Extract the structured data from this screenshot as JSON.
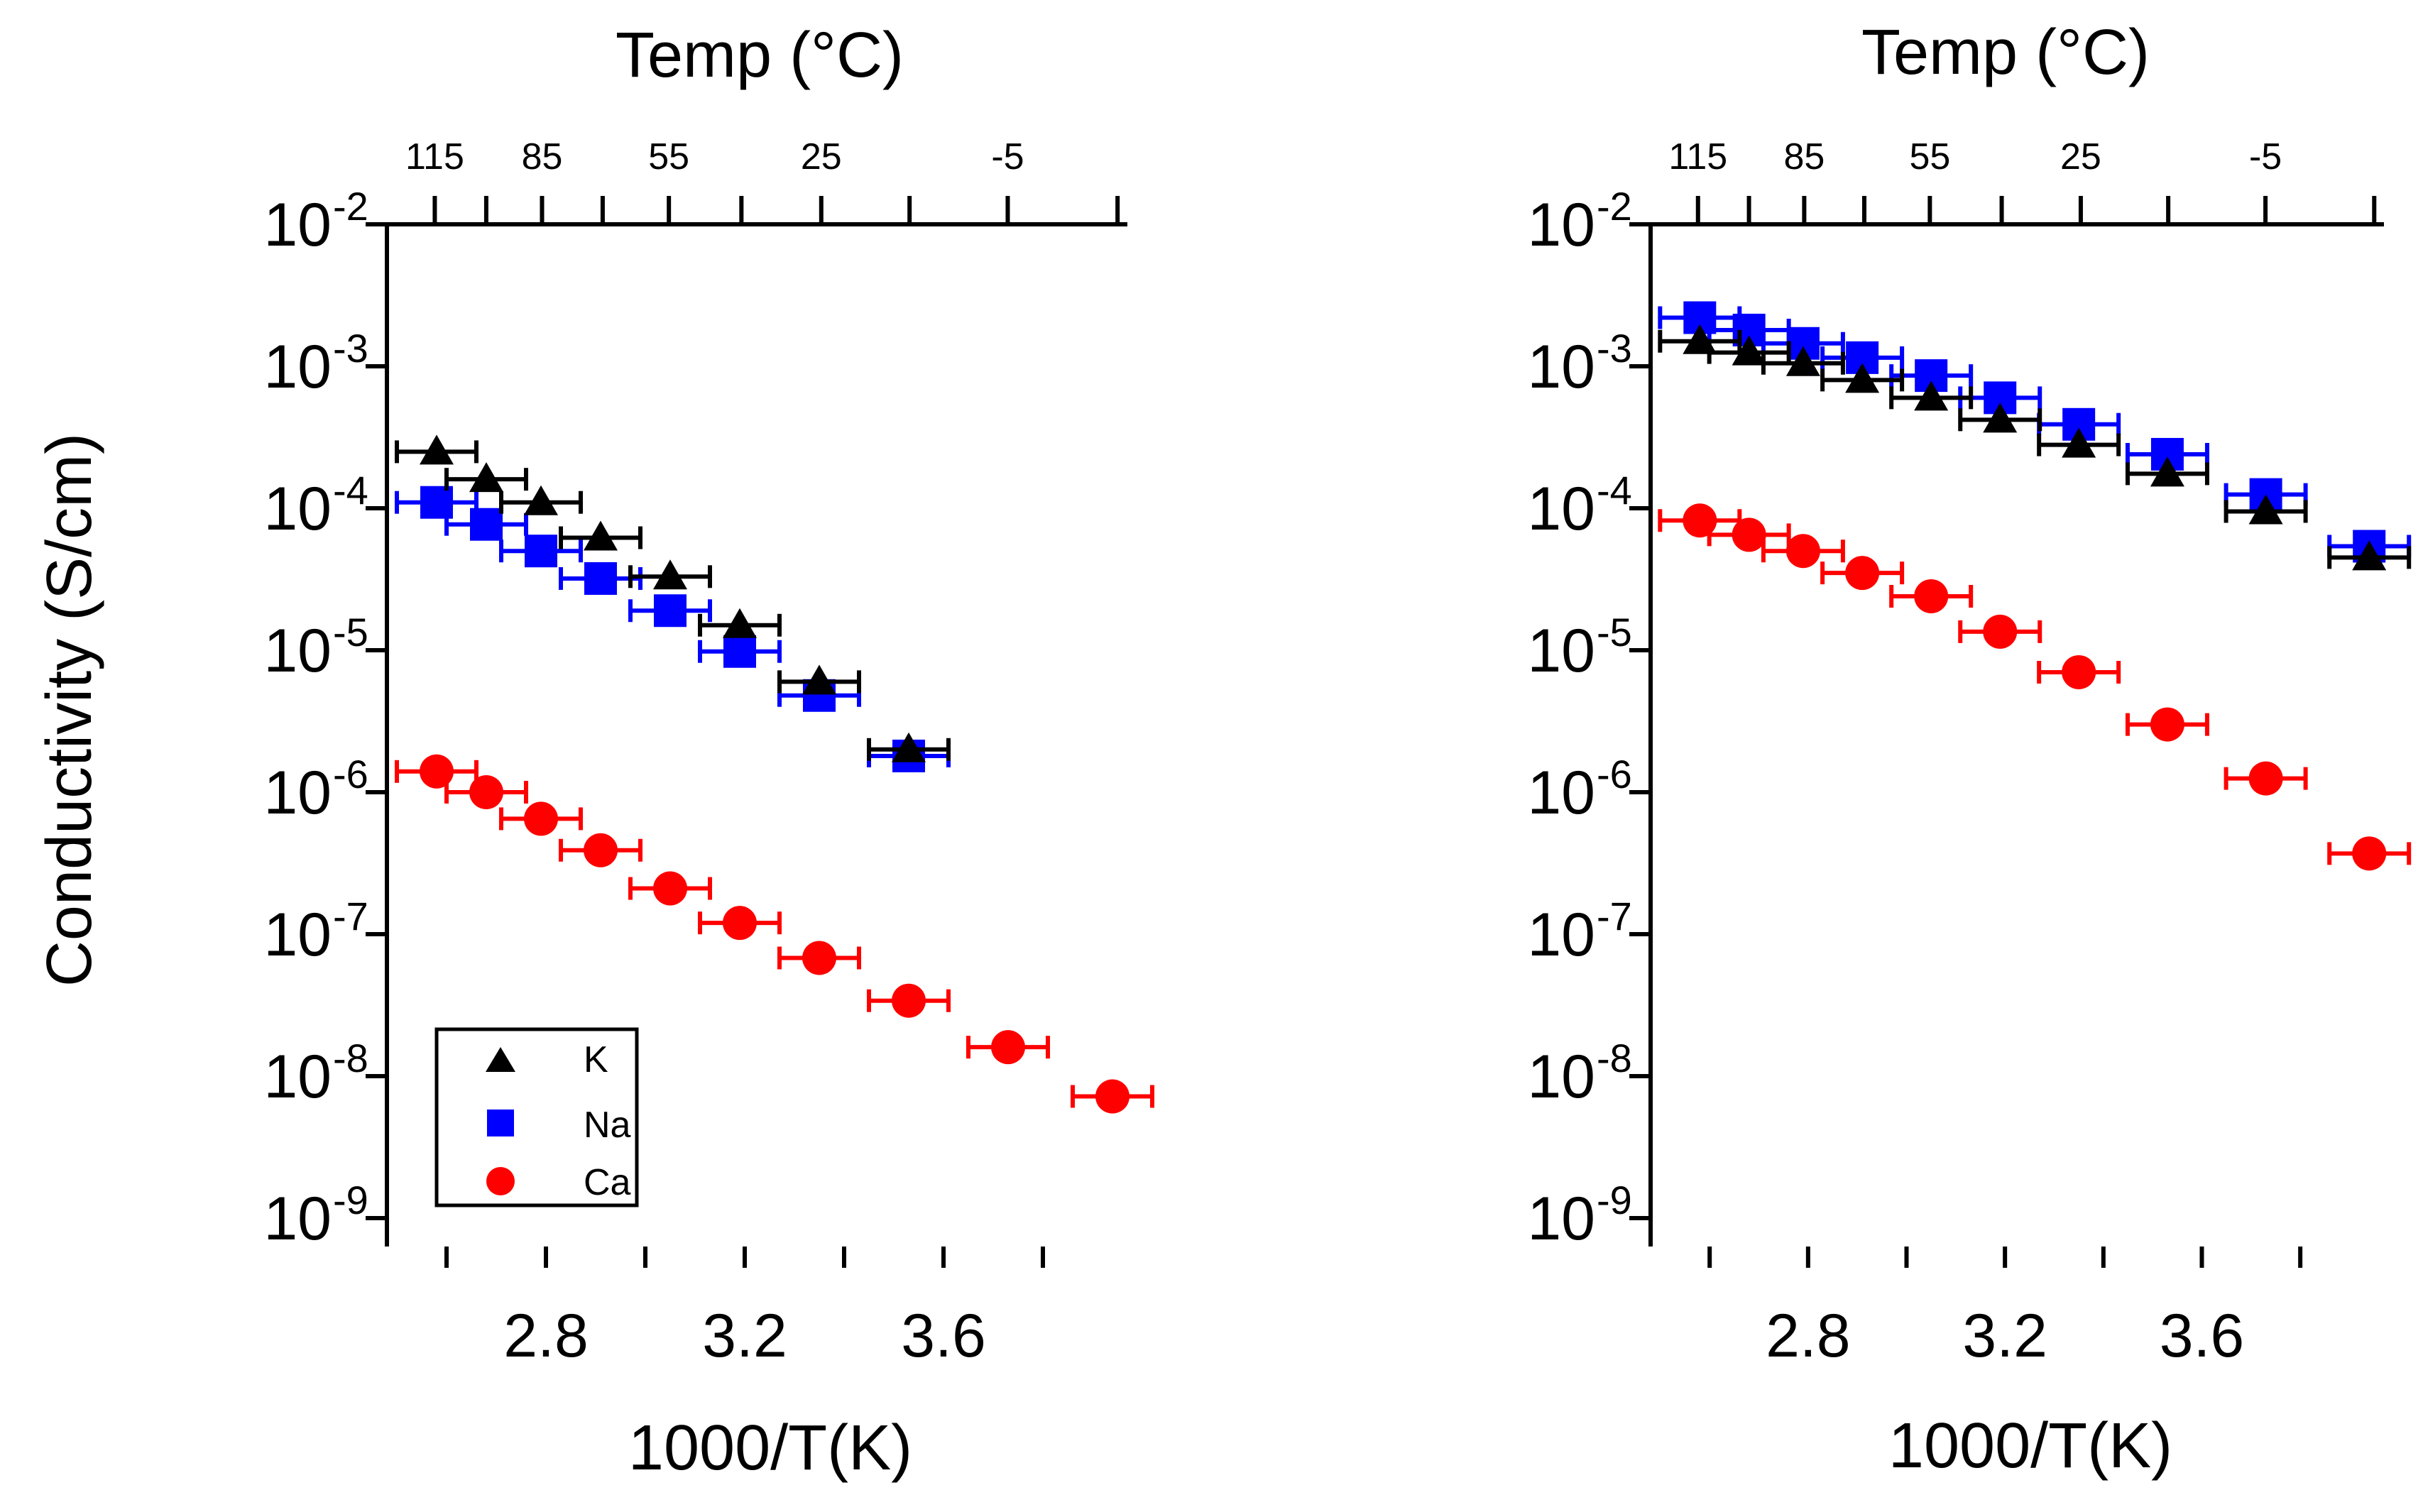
{
  "shared": {
    "y_axis_title": "Conductivity (S/cm)",
    "x_axis_title": "1000/T(K)",
    "top_axis_title": "Temp (°C)",
    "y_tick_base": "10",
    "legend": [
      {
        "label": "K",
        "color": "#000000",
        "marker": "triangle"
      },
      {
        "label": "Na",
        "color": "#0000ff",
        "marker": "square"
      },
      {
        "label": "Ca",
        "color": "#ff0000",
        "marker": "circle"
      }
    ]
  },
  "chart_data": [
    {
      "type": "scatter",
      "panel": "left",
      "xlabel": "1000/T(K)",
      "ylabel": "Conductivity (S/cm)",
      "top_xlabel": "Temp (°C)",
      "xlim": [
        2.48,
        3.97
      ],
      "ylim_log10": [
        -9.2,
        -2
      ],
      "yscale": "log",
      "x_ticks": [
        2.8,
        3.2,
        3.6
      ],
      "x_tick_labels": [
        "2.8",
        "3.2",
        "3.6"
      ],
      "y_tick_exponents": [
        -2,
        -3,
        -4,
        -5,
        -6,
        -7,
        -8,
        -9
      ],
      "top_ticks_celsius": [
        115,
        100,
        85,
        70,
        55,
        40,
        25,
        10,
        -5,
        -20
      ],
      "top_tick_labels": [
        "115",
        "85",
        "55",
        "25",
        "-5"
      ],
      "legend_position": "bottom-left",
      "series": [
        {
          "name": "K",
          "color": "#000000",
          "marker": "triangle",
          "x": [
            2.58,
            2.68,
            2.79,
            2.91,
            3.05,
            3.19,
            3.35,
            3.53
          ],
          "y": [
            0.00025,
            0.00016,
            0.00011,
            6.2e-05,
            3.3e-05,
            1.5e-05,
            6e-06,
            2e-06
          ]
        },
        {
          "name": "Na",
          "color": "#0000ff",
          "marker": "square",
          "x": [
            2.58,
            2.68,
            2.79,
            2.91,
            3.05,
            3.19,
            3.35,
            3.53
          ],
          "y": [
            0.00011,
            7.7e-05,
            5e-05,
            3.2e-05,
            1.9e-05,
            9.8e-06,
            4.8e-06,
            1.8e-06
          ]
        },
        {
          "name": "Ca",
          "color": "#ff0000",
          "marker": "circle",
          "x": [
            2.58,
            2.68,
            2.79,
            2.91,
            3.05,
            3.19,
            3.35,
            3.53,
            3.73,
            3.94
          ],
          "y": [
            1.4e-06,
            1e-06,
            6.5e-07,
            3.9e-07,
            2.1e-07,
            1.2e-07,
            6.8e-08,
            3.4e-08,
            1.6e-08,
            7.2e-09
          ]
        }
      ]
    },
    {
      "type": "scatter",
      "panel": "right",
      "xlabel": "1000/T(K)",
      "ylabel": "",
      "top_xlabel": "Temp (°C)",
      "xlim": [
        2.48,
        3.97
      ],
      "ylim_log10": [
        -9.2,
        -2
      ],
      "yscale": "log",
      "x_ticks": [
        2.8,
        3.2,
        3.6
      ],
      "x_tick_labels": [
        "2.8",
        "3.2",
        "3.6"
      ],
      "y_tick_exponents": [
        -2,
        -3,
        -4,
        -5,
        -6,
        -7,
        -8,
        -9
      ],
      "top_ticks_celsius": [
        115,
        100,
        85,
        70,
        55,
        40,
        25,
        10,
        -5,
        -20
      ],
      "top_tick_labels": [
        "115",
        "85",
        "55",
        "25",
        "-5"
      ],
      "series": [
        {
          "name": "K",
          "color": "#000000",
          "marker": "triangle",
          "x": [
            2.58,
            2.68,
            2.79,
            2.91,
            3.05,
            3.19,
            3.35,
            3.53,
            3.73,
            3.94
          ],
          "y": [
            0.0015,
            0.00125,
            0.00105,
            0.0008,
            0.0006,
            0.00042,
            0.00028,
            0.000175,
            9.5e-05,
            4.5e-05
          ]
        },
        {
          "name": "Na",
          "color": "#0000ff",
          "marker": "square",
          "x": [
            2.58,
            2.68,
            2.79,
            2.91,
            3.05,
            3.19,
            3.35,
            3.53,
            3.73,
            3.94
          ],
          "y": [
            0.0022,
            0.0018,
            0.00145,
            0.00115,
            0.00086,
            0.0006,
            0.00039,
            0.00024,
            0.000125,
            5.4e-05
          ]
        },
        {
          "name": "Ca",
          "color": "#ff0000",
          "marker": "circle",
          "x": [
            2.58,
            2.68,
            2.79,
            2.91,
            3.05,
            3.19,
            3.35,
            3.53,
            3.73,
            3.94
          ],
          "y": [
            8.2e-05,
            6.5e-05,
            5e-05,
            3.5e-05,
            2.4e-05,
            1.35e-05,
            7e-06,
            3e-06,
            1.25e-06,
            3.7e-07
          ]
        }
      ]
    }
  ]
}
